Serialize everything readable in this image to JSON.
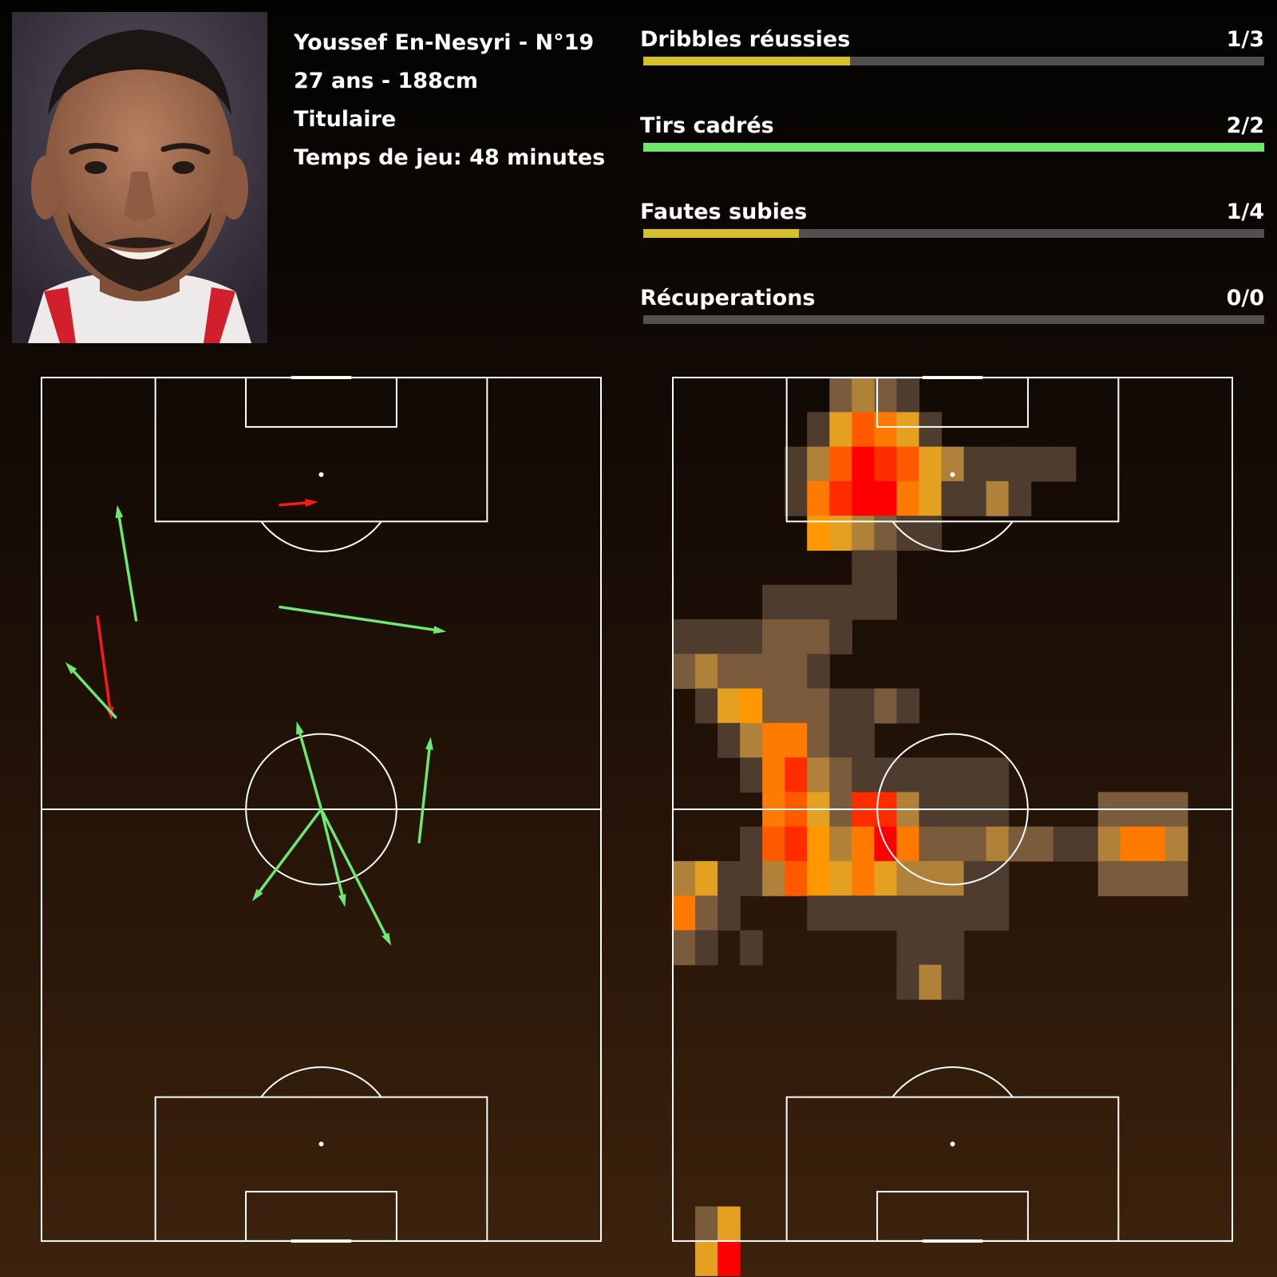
{
  "player": {
    "name_line": "Youssef En-Nesyri - N°19",
    "age_height": "27 ans - 188cm",
    "status": "Titulaire",
    "playing_time": "Temps de jeu: 48 minutes"
  },
  "colors": {
    "success": "#6ee86e",
    "fail": "#ff1a1a",
    "partial": "#d6c02c",
    "track": "#505050",
    "pitch_lines": "#ffffff"
  },
  "chart_data": [
    {
      "type": "bar",
      "orientation": "horizontal",
      "bars": [
        {
          "label": "Dribbles réussies",
          "value_text": "1/3",
          "success": 1,
          "total": 3,
          "color": "#d6c02c"
        },
        {
          "label": "Tirs cadrés",
          "value_text": "2/2",
          "success": 2,
          "total": 2,
          "color": "#6ee86e"
        },
        {
          "label": "Fautes subies",
          "value_text": "1/4",
          "success": 1,
          "total": 4,
          "color": "#d6c02c"
        },
        {
          "label": "Récuperations",
          "value_text": "0/0",
          "success": 0,
          "total": 0,
          "color": "#d6c02c"
        }
      ]
    },
    {
      "type": "pass_map",
      "pitch": {
        "length_m": 105,
        "width_m": 68,
        "attacking_direction": "up"
      },
      "passes": [
        {
          "x1": 11.5,
          "y1": 23,
          "x2": 9.2,
          "y2": 37,
          "result": "success"
        },
        {
          "x1": 29,
          "y1": 37,
          "x2": 33.6,
          "y2": 37.4,
          "result": "fail"
        },
        {
          "x1": 29,
          "y1": 24.6,
          "x2": 49.2,
          "y2": 21.6,
          "result": "success"
        },
        {
          "x1": 6.8,
          "y1": 23.4,
          "x2": 8.5,
          "y2": 10.9,
          "result": "fail"
        },
        {
          "x1": 9,
          "y1": 11.2,
          "x2": 2.9,
          "y2": 17.9,
          "result": "success"
        },
        {
          "x1": 34,
          "y1": 0,
          "x2": 31,
          "y2": 10.7,
          "result": "success"
        },
        {
          "x1": 34,
          "y1": 0,
          "x2": 25.6,
          "y2": -11.2,
          "result": "success"
        },
        {
          "x1": 34,
          "y1": 0,
          "x2": 36.9,
          "y2": -11.9,
          "result": "success"
        },
        {
          "x1": 34,
          "y1": 0,
          "x2": 42.5,
          "y2": -16.6,
          "result": "success"
        },
        {
          "x1": 45.9,
          "y1": -4,
          "x2": 47.3,
          "y2": 8.8,
          "result": "success"
        }
      ]
    },
    {
      "type": "heatmap",
      "grid": {
        "cols": 25,
        "rows": 25,
        "cell_size_x": 2.72,
        "cell_size_y": 4.2,
        "max_level": 9
      },
      "cells": [
        [
          0,
          7,
          2
        ],
        [
          0,
          8,
          3
        ],
        [
          0,
          9,
          2
        ],
        [
          0,
          10,
          1
        ],
        [
          1,
          6,
          1
        ],
        [
          1,
          7,
          4
        ],
        [
          1,
          8,
          7
        ],
        [
          1,
          9,
          6
        ],
        [
          1,
          10,
          4
        ],
        [
          1,
          11,
          1
        ],
        [
          2,
          5,
          1
        ],
        [
          2,
          6,
          3
        ],
        [
          2,
          7,
          7
        ],
        [
          2,
          8,
          9
        ],
        [
          2,
          9,
          8
        ],
        [
          2,
          10,
          7
        ],
        [
          2,
          11,
          4
        ],
        [
          2,
          12,
          3
        ],
        [
          2,
          13,
          1
        ],
        [
          2,
          14,
          1
        ],
        [
          2,
          15,
          1
        ],
        [
          2,
          16,
          1
        ],
        [
          2,
          17,
          1
        ],
        [
          3,
          5,
          1
        ],
        [
          3,
          6,
          6
        ],
        [
          3,
          7,
          8
        ],
        [
          3,
          8,
          9
        ],
        [
          3,
          9,
          9
        ],
        [
          3,
          10,
          6
        ],
        [
          3,
          11,
          4
        ],
        [
          3,
          12,
          1
        ],
        [
          3,
          13,
          1
        ],
        [
          3,
          14,
          3
        ],
        [
          3,
          15,
          1
        ],
        [
          4,
          6,
          5
        ],
        [
          4,
          7,
          4
        ],
        [
          4,
          8,
          3
        ],
        [
          4,
          9,
          2
        ],
        [
          4,
          10,
          1
        ],
        [
          4,
          11,
          1
        ],
        [
          5,
          8,
          1
        ],
        [
          5,
          9,
          1
        ],
        [
          6,
          4,
          1
        ],
        [
          6,
          5,
          1
        ],
        [
          6,
          6,
          1
        ],
        [
          6,
          7,
          1
        ],
        [
          6,
          8,
          1
        ],
        [
          6,
          9,
          1
        ],
        [
          7,
          0,
          1
        ],
        [
          7,
          1,
          1
        ],
        [
          7,
          2,
          1
        ],
        [
          7,
          3,
          1
        ],
        [
          7,
          4,
          2
        ],
        [
          7,
          5,
          2
        ],
        [
          7,
          6,
          2
        ],
        [
          7,
          7,
          1
        ],
        [
          8,
          0,
          2
        ],
        [
          8,
          1,
          3
        ],
        [
          8,
          2,
          2
        ],
        [
          8,
          3,
          2
        ],
        [
          8,
          4,
          2
        ],
        [
          8,
          5,
          2
        ],
        [
          8,
          6,
          1
        ],
        [
          9,
          1,
          1
        ],
        [
          9,
          2,
          4
        ],
        [
          9,
          3,
          5
        ],
        [
          9,
          4,
          2
        ],
        [
          9,
          5,
          2
        ],
        [
          9,
          6,
          2
        ],
        [
          9,
          7,
          1
        ],
        [
          9,
          8,
          1
        ],
        [
          9,
          9,
          2
        ],
        [
          9,
          10,
          1
        ],
        [
          10,
          2,
          1
        ],
        [
          10,
          3,
          3
        ],
        [
          10,
          4,
          6
        ],
        [
          10,
          5,
          6
        ],
        [
          10,
          6,
          2
        ],
        [
          10,
          7,
          1
        ],
        [
          10,
          8,
          1
        ],
        [
          11,
          3,
          1
        ],
        [
          11,
          4,
          6
        ],
        [
          11,
          5,
          8
        ],
        [
          11,
          6,
          3
        ],
        [
          11,
          7,
          2
        ],
        [
          11,
          8,
          1
        ],
        [
          11,
          9,
          1
        ],
        [
          11,
          10,
          1
        ],
        [
          11,
          11,
          1
        ],
        [
          11,
          12,
          1
        ],
        [
          11,
          13,
          1
        ],
        [
          11,
          14,
          1
        ],
        [
          12,
          4,
          6
        ],
        [
          12,
          5,
          7
        ],
        [
          12,
          6,
          4
        ],
        [
          12,
          7,
          2
        ],
        [
          12,
          8,
          8
        ],
        [
          12,
          9,
          8
        ],
        [
          12,
          10,
          3
        ],
        [
          12,
          11,
          1
        ],
        [
          12,
          12,
          1
        ],
        [
          12,
          13,
          1
        ],
        [
          12,
          14,
          1
        ],
        [
          12,
          19,
          2
        ],
        [
          12,
          20,
          2
        ],
        [
          12,
          21,
          2
        ],
        [
          12,
          22,
          2
        ],
        [
          13,
          3,
          1
        ],
        [
          13,
          4,
          7
        ],
        [
          13,
          5,
          8
        ],
        [
          13,
          6,
          5
        ],
        [
          13,
          7,
          3
        ],
        [
          13,
          8,
          6
        ],
        [
          13,
          9,
          9
        ],
        [
          13,
          10,
          6
        ],
        [
          13,
          11,
          2
        ],
        [
          13,
          12,
          2
        ],
        [
          13,
          13,
          2
        ],
        [
          13,
          14,
          3
        ],
        [
          13,
          15,
          2
        ],
        [
          13,
          16,
          2
        ],
        [
          13,
          17,
          1
        ],
        [
          13,
          18,
          1
        ],
        [
          13,
          19,
          3
        ],
        [
          13,
          20,
          6
        ],
        [
          13,
          21,
          6
        ],
        [
          13,
          22,
          3
        ],
        [
          14,
          0,
          3
        ],
        [
          14,
          1,
          4
        ],
        [
          14,
          2,
          1
        ],
        [
          14,
          3,
          1
        ],
        [
          14,
          4,
          3
        ],
        [
          14,
          5,
          7
        ],
        [
          14,
          6,
          5
        ],
        [
          14,
          7,
          4
        ],
        [
          14,
          8,
          6
        ],
        [
          14,
          9,
          4
        ],
        [
          14,
          10,
          3
        ],
        [
          14,
          11,
          3
        ],
        [
          14,
          12,
          3
        ],
        [
          14,
          13,
          1
        ],
        [
          14,
          14,
          1
        ],
        [
          14,
          19,
          2
        ],
        [
          14,
          20,
          2
        ],
        [
          14,
          21,
          2
        ],
        [
          14,
          22,
          2
        ],
        [
          15,
          0,
          6
        ],
        [
          15,
          1,
          2
        ],
        [
          15,
          2,
          1
        ],
        [
          15,
          6,
          1
        ],
        [
          15,
          7,
          1
        ],
        [
          15,
          8,
          1
        ],
        [
          15,
          9,
          1
        ],
        [
          15,
          10,
          1
        ],
        [
          15,
          11,
          1
        ],
        [
          15,
          12,
          1
        ],
        [
          15,
          13,
          1
        ],
        [
          15,
          14,
          1
        ],
        [
          16,
          0,
          2
        ],
        [
          16,
          1,
          1
        ],
        [
          16,
          3,
          1
        ],
        [
          16,
          10,
          1
        ],
        [
          16,
          11,
          1
        ],
        [
          16,
          12,
          1
        ],
        [
          17,
          10,
          1
        ],
        [
          17,
          11,
          3
        ],
        [
          17,
          12,
          1
        ],
        [
          24,
          1,
          2
        ],
        [
          24,
          2,
          4
        ],
        [
          25,
          1,
          4
        ],
        [
          25,
          2,
          9
        ]
      ]
    }
  ]
}
